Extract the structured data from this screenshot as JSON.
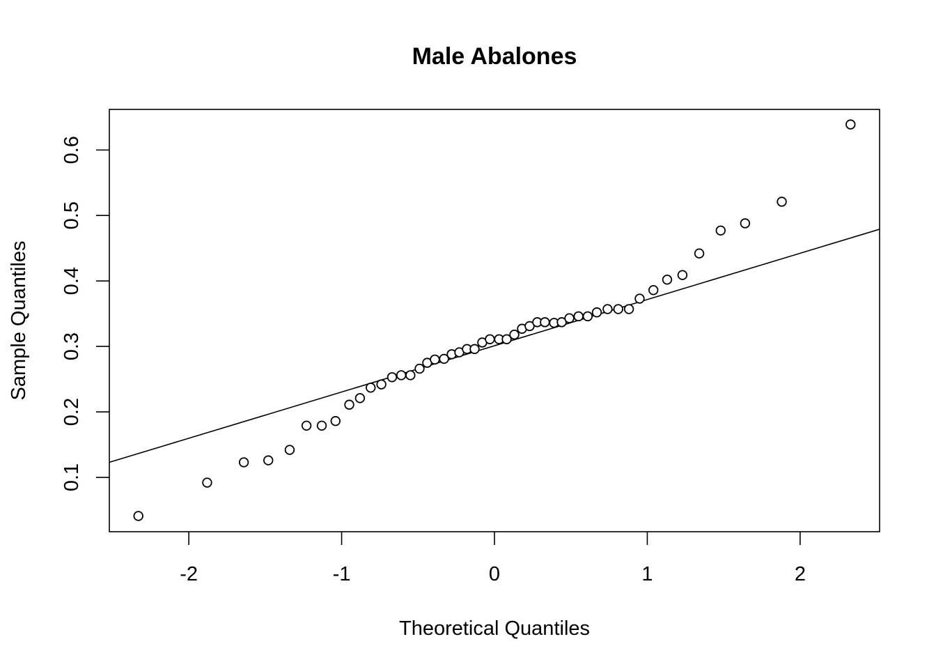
{
  "chart_data": {
    "type": "scatter",
    "title": "Male Abalones",
    "xlabel": "Theoretical Quantiles",
    "ylabel": "Sample Quantiles",
    "xlim": [
      -2.52,
      2.52
    ],
    "ylim": [
      0.017,
      0.662
    ],
    "xticks": [
      -2,
      -1,
      0,
      1,
      2
    ],
    "xtick_labels": [
      "-2",
      "-1",
      "0",
      "1",
      "2"
    ],
    "yticks": [
      0.1,
      0.2,
      0.3,
      0.4,
      0.5,
      0.6
    ],
    "ytick_labels": [
      "0.1",
      "0.2",
      "0.3",
      "0.4",
      "0.5",
      "0.6"
    ],
    "reference_line": {
      "x": [
        -2.52,
        2.52
      ],
      "y": [
        0.123,
        0.479
      ]
    },
    "points": [
      {
        "x": -2.33,
        "y": 0.041
      },
      {
        "x": -1.88,
        "y": 0.092
      },
      {
        "x": -1.64,
        "y": 0.123
      },
      {
        "x": -1.48,
        "y": 0.126
      },
      {
        "x": -1.34,
        "y": 0.142
      },
      {
        "x": -1.23,
        "y": 0.179
      },
      {
        "x": -1.13,
        "y": 0.179
      },
      {
        "x": -1.04,
        "y": 0.186
      },
      {
        "x": -0.95,
        "y": 0.211
      },
      {
        "x": -0.88,
        "y": 0.221
      },
      {
        "x": -0.81,
        "y": 0.237
      },
      {
        "x": -0.74,
        "y": 0.242
      },
      {
        "x": -0.67,
        "y": 0.253
      },
      {
        "x": -0.61,
        "y": 0.256
      },
      {
        "x": -0.55,
        "y": 0.256
      },
      {
        "x": -0.49,
        "y": 0.266
      },
      {
        "x": -0.44,
        "y": 0.275
      },
      {
        "x": -0.39,
        "y": 0.28
      },
      {
        "x": -0.33,
        "y": 0.281
      },
      {
        "x": -0.28,
        "y": 0.288
      },
      {
        "x": -0.23,
        "y": 0.291
      },
      {
        "x": -0.18,
        "y": 0.296
      },
      {
        "x": -0.13,
        "y": 0.296
      },
      {
        "x": -0.08,
        "y": 0.306
      },
      {
        "x": -0.03,
        "y": 0.311
      },
      {
        "x": 0.03,
        "y": 0.311
      },
      {
        "x": 0.08,
        "y": 0.311
      },
      {
        "x": 0.13,
        "y": 0.318
      },
      {
        "x": 0.18,
        "y": 0.327
      },
      {
        "x": 0.23,
        "y": 0.331
      },
      {
        "x": 0.28,
        "y": 0.337
      },
      {
        "x": 0.33,
        "y": 0.337
      },
      {
        "x": 0.39,
        "y": 0.336
      },
      {
        "x": 0.44,
        "y": 0.337
      },
      {
        "x": 0.49,
        "y": 0.343
      },
      {
        "x": 0.55,
        "y": 0.346
      },
      {
        "x": 0.61,
        "y": 0.346
      },
      {
        "x": 0.67,
        "y": 0.352
      },
      {
        "x": 0.74,
        "y": 0.357
      },
      {
        "x": 0.81,
        "y": 0.357
      },
      {
        "x": 0.88,
        "y": 0.357
      },
      {
        "x": 0.95,
        "y": 0.373
      },
      {
        "x": 1.04,
        "y": 0.386
      },
      {
        "x": 1.13,
        "y": 0.402
      },
      {
        "x": 1.23,
        "y": 0.409
      },
      {
        "x": 1.34,
        "y": 0.442
      },
      {
        "x": 1.48,
        "y": 0.477
      },
      {
        "x": 1.64,
        "y": 0.488
      },
      {
        "x": 1.88,
        "y": 0.521
      },
      {
        "x": 2.33,
        "y": 0.639
      }
    ]
  }
}
